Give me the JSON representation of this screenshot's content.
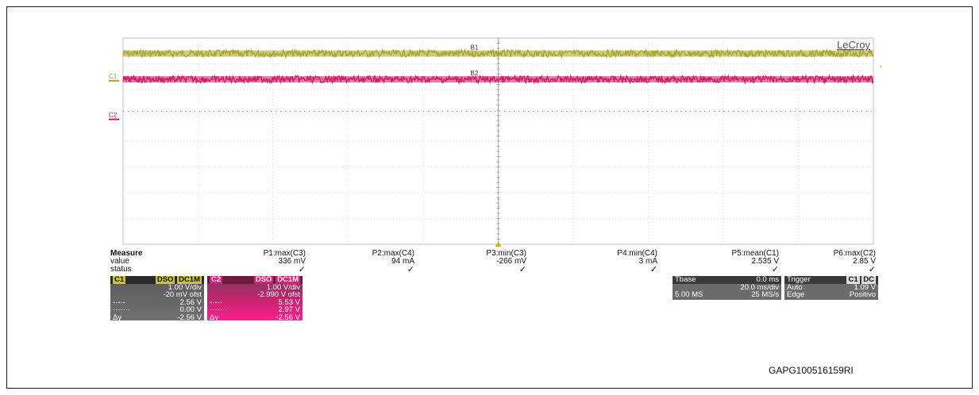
{
  "chart_data": {
    "type": "line",
    "brand": "LeCroy",
    "grid": true,
    "x_divisions": 10,
    "y_divisions": 8,
    "series": [
      {
        "name": "C1",
        "color": "#a8a020",
        "level_div": 0.6
      },
      {
        "name": "C2",
        "color": "#d0145c",
        "level_div": 1.6
      }
    ],
    "channel_labels": [
      "C1",
      "C2"
    ],
    "cursor_labels": [
      "B1",
      "B2"
    ],
    "ground_markers": [
      {
        "label": "C1",
        "level_div": 1.5
      },
      {
        "label": "C2",
        "level_div": 3.0
      }
    ]
  },
  "measure": {
    "header": "Measure",
    "row_labels": [
      "value",
      "status"
    ],
    "columns": [
      {
        "name": "P1:max(C3)",
        "value": "336 mV"
      },
      {
        "name": "P2:max(C4)",
        "value": "94 mA"
      },
      {
        "name": "P3:min(C3)",
        "value": "-266 mV"
      },
      {
        "name": "P4:min(C4)",
        "value": "3 mA"
      },
      {
        "name": "P5:mean(C1)",
        "value": "2.535 V"
      },
      {
        "name": "P6:max(C2)",
        "value": "2.85 V"
      }
    ]
  },
  "channel_boxes": [
    {
      "name": "C1",
      "tags": [
        "DSO",
        "DC1M"
      ],
      "vdiv": "1.00 V/div",
      "offset": "-20 mV ofst",
      "r1": "2.56 V",
      "r2": "0.00 V",
      "dy_label": "Δy",
      "dy": "-2.56 V"
    },
    {
      "name": "C2",
      "tags": [
        "DSO",
        "DC1M"
      ],
      "vdiv": "1.00 V/div",
      "offset": "-2.990 V ofst",
      "r1": "5.53 V",
      "r2": "2.97 V",
      "dy_label": "Δy",
      "dy": "-2.56 V"
    }
  ],
  "timebase": {
    "label": "Tbase",
    "delay": "0.0 ms",
    "tdiv": "20.0 ms/div",
    "samples": "5.00 MS",
    "rate": "25 MS/s"
  },
  "trigger": {
    "label": "Trigger",
    "source": "C1",
    "coupling": "DC",
    "mode": "Auto",
    "level": "1.09 V",
    "type": "Edge",
    "slope": "Positivo"
  },
  "figure_code": "GAPG100516159RI"
}
